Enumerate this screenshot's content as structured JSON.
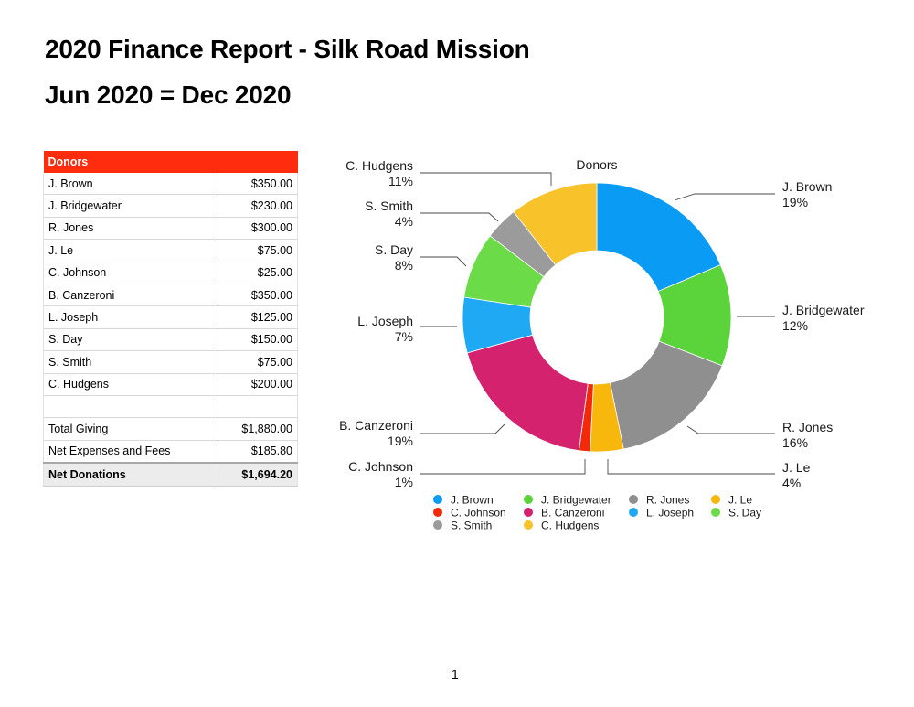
{
  "report": {
    "title": "2020 Finance Report - Silk Road Mission",
    "subtitle": "Jun 2020 = Dec 2020",
    "page_number": "1"
  },
  "table": {
    "header": "Donors",
    "rows": [
      {
        "name": "J. Brown",
        "amount": "$350.00"
      },
      {
        "name": "J. Bridgewater",
        "amount": "$230.00"
      },
      {
        "name": "R. Jones",
        "amount": "$300.00"
      },
      {
        "name": "J. Le",
        "amount": "$75.00"
      },
      {
        "name": "C. Johnson",
        "amount": "$25.00"
      },
      {
        "name": "B. Canzeroni",
        "amount": "$350.00"
      },
      {
        "name": "L. Joseph",
        "amount": "$125.00"
      },
      {
        "name": "S. Day",
        "amount": "$150.00"
      },
      {
        "name": "S. Smith",
        "amount": "$75.00"
      },
      {
        "name": "C. Hudgens",
        "amount": "$200.00"
      },
      {
        "name": "",
        "amount": ""
      },
      {
        "name": "Total Giving",
        "amount": "$1,880.00"
      },
      {
        "name": "Net Expenses and Fees",
        "amount": "$185.80"
      },
      {
        "name": "Net Donations",
        "amount": "$1,694.20"
      }
    ]
  },
  "chart_data": {
    "type": "pie",
    "style": "donut",
    "title": "Donors",
    "categories": [
      "J. Brown",
      "J. Bridgewater",
      "R. Jones",
      "J. Le",
      "C. Johnson",
      "B. Canzeroni",
      "L. Joseph",
      "S. Day",
      "S. Smith",
      "C. Hudgens"
    ],
    "values": [
      350,
      230,
      300,
      75,
      25,
      350,
      125,
      150,
      75,
      200
    ],
    "percent_labels": [
      "19%",
      "12%",
      "16%",
      "4%",
      "1%",
      "19%",
      "7%",
      "8%",
      "4%",
      "11%"
    ],
    "colors": [
      "#0a9cf5",
      "#5ad43a",
      "#8f8f8f",
      "#f8b70d",
      "#f2290a",
      "#d5226e",
      "#1fa9f5",
      "#6cdb48",
      "#9b9b9b",
      "#f8c22a"
    ],
    "legend": {
      "placement": "bottom",
      "entries": [
        "J. Brown",
        "J. Bridgewater",
        "R. Jones",
        "J. Le",
        "C. Johnson",
        "B. Canzeroni",
        "L. Joseph",
        "S. Day",
        "S. Smith",
        "C. Hudgens"
      ]
    }
  }
}
